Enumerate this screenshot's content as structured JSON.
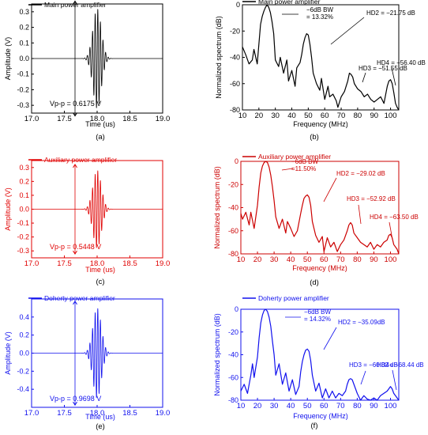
{
  "colors": {
    "a": "#000000",
    "b": "#000000",
    "c": "#e00000",
    "d": "#cc0000",
    "e": "#1010ee",
    "f": "#1010ee"
  },
  "chart_data": [
    {
      "id": "a",
      "type": "line",
      "panel_label": "(a)",
      "legend": "Main power amplifier",
      "xlabel": "Time (us)",
      "ylabel": "Amplitude (V)",
      "xlim": [
        17.0,
        19.0
      ],
      "ylim": [
        -0.35,
        0.35
      ],
      "xticks": [
        "17.0",
        "17.5",
        "18.0",
        "18.5",
        "19.0"
      ],
      "yticks": [
        "0.3",
        "0.2",
        "0.1",
        "0.0",
        "-0.1",
        "-0.2",
        "-0.3"
      ],
      "annotations": [
        {
          "text": "Vp-p = 0.6175 V"
        }
      ],
      "burst": {
        "center": 18.0,
        "amplitude": 0.32,
        "width": 0.09,
        "freq_mhz": 25
      }
    },
    {
      "id": "b",
      "type": "line",
      "panel_label": "(b)",
      "legend": "Main power amplifier",
      "xlabel": "Frequency (MHz)",
      "ylabel": "Normalized spectrum (dB)",
      "xlim": [
        10,
        105
      ],
      "ylim": [
        -80,
        0
      ],
      "xticks": [
        "10",
        "20",
        "30",
        "40",
        "50",
        "60",
        "70",
        "80",
        "90",
        "100"
      ],
      "yticks": [
        "0",
        "-20",
        "-40",
        "-60",
        "-80"
      ],
      "annotations": [
        {
          "text": "−6dB BW\n= 13.32%"
        },
        {
          "text": "HD2 = −21.75 dB"
        },
        {
          "text": "HD3 = −51.55 dB"
        },
        {
          "text": "HD4 = −56.40 dB"
        }
      ],
      "x": [
        10,
        12,
        14,
        16,
        17,
        19,
        20,
        21,
        22,
        23,
        24,
        25,
        26,
        27,
        28,
        29,
        30,
        32,
        33,
        35,
        37,
        38,
        40,
        42,
        43,
        45,
        46,
        47,
        48,
        49,
        50,
        51,
        52,
        53,
        55,
        57,
        58,
        60,
        62,
        63,
        65,
        67,
        68,
        70,
        72,
        74,
        75,
        76,
        77,
        78,
        80,
        82,
        84,
        86,
        88,
        90,
        92,
        94,
        96,
        98,
        99,
        100,
        101,
        102,
        103,
        104,
        105
      ],
      "y": [
        -32,
        -38,
        -45,
        -42,
        -34,
        -45,
        -30,
        -15,
        -9,
        -5,
        -2,
        0,
        -2,
        -6,
        -13,
        -22,
        -42,
        -47,
        -40,
        -52,
        -42,
        -58,
        -50,
        -62,
        -48,
        -44,
        -38,
        -30,
        -25,
        -22,
        -23,
        -30,
        -40,
        -52,
        -60,
        -65,
        -56,
        -72,
        -62,
        -70,
        -68,
        -73,
        -78,
        -70,
        -66,
        -58,
        -52,
        -53,
        -55,
        -60,
        -64,
        -66,
        -70,
        -68,
        -72,
        -74,
        -72,
        -70,
        -75,
        -62,
        -58,
        -57,
        -60,
        -67,
        -75,
        -78,
        -80
      ]
    },
    {
      "id": "c",
      "type": "line",
      "panel_label": "(c)",
      "legend": "Auxiliary power amplifier",
      "xlabel": "Time (us)",
      "ylabel": "Amplitude (V)",
      "xlim": [
        17.0,
        19.0
      ],
      "ylim": [
        -0.35,
        0.35
      ],
      "xticks": [
        "17.0",
        "17.5",
        "18.0",
        "18.5",
        "19.0"
      ],
      "yticks": [
        "0.3",
        "0.2",
        "0.1",
        "0.0",
        "-0.1",
        "-0.2",
        "-0.3"
      ],
      "annotations": [
        {
          "text": "Vp-p = 0.5448 V"
        }
      ],
      "burst": {
        "center": 18.0,
        "amplitude": 0.28,
        "width": 0.09,
        "freq_mhz": 25
      }
    },
    {
      "id": "d",
      "type": "line",
      "panel_label": "(d)",
      "legend": "Auxiliary power amplifier",
      "xlabel": "Frequency (MHz)",
      "ylabel": "Normalized spectrum (dB)",
      "xlim": [
        10,
        105
      ],
      "ylim": [
        -80,
        0
      ],
      "xticks": [
        "10",
        "20",
        "30",
        "40",
        "50",
        "60",
        "70",
        "80",
        "90",
        "100"
      ],
      "yticks": [
        "0",
        "-20",
        "-40",
        "-60",
        "-80"
      ],
      "annotations": [
        {
          "text": "−6dB BW\n=11.50%"
        },
        {
          "text": "HD2 = −29.02 dB"
        },
        {
          "text": "HD3 = −52.92 dB"
        },
        {
          "text": "HD4 = −63.50 dB"
        }
      ],
      "x": [
        10,
        11,
        13,
        15,
        16,
        18,
        20,
        21,
        22,
        23,
        24,
        25,
        26,
        27,
        28,
        29,
        30,
        31,
        33,
        35,
        37,
        38,
        40,
        42,
        44,
        46,
        47,
        48,
        49,
        50,
        51,
        52,
        53,
        55,
        57,
        59,
        60,
        62,
        64,
        66,
        68,
        70,
        72,
        74,
        75,
        76,
        77,
        78,
        80,
        82,
        84,
        86,
        88,
        90,
        92,
        94,
        96,
        98,
        99,
        100,
        101,
        102,
        104,
        105
      ],
      "y": [
        -45,
        -50,
        -44,
        -55,
        -44,
        -58,
        -38,
        -22,
        -10,
        -4,
        -1,
        0,
        -1,
        -5,
        -12,
        -22,
        -34,
        -48,
        -58,
        -50,
        -62,
        -52,
        -58,
        -65,
        -60,
        -45,
        -38,
        -32,
        -30,
        -29,
        -31,
        -38,
        -52,
        -64,
        -70,
        -65,
        -78,
        -66,
        -74,
        -70,
        -78,
        -72,
        -68,
        -60,
        -55,
        -53,
        -55,
        -62,
        -66,
        -70,
        -72,
        -74,
        -70,
        -76,
        -72,
        -74,
        -70,
        -68,
        -64,
        -63,
        -66,
        -72,
        -76,
        -80
      ]
    },
    {
      "id": "e",
      "type": "line",
      "panel_label": "(e)",
      "legend": "Doherty power amplifier",
      "xlabel": "Time (us)",
      "ylabel": "Amplitude (V)",
      "xlim": [
        17.0,
        19.0
      ],
      "ylim": [
        -0.6,
        0.6
      ],
      "xticks": [
        "17.0",
        "17.5",
        "18.0",
        "18.5",
        "19.0"
      ],
      "yticks": [
        "0.4",
        "0.2",
        "0.0",
        "-0.2",
        "-0.4"
      ],
      "annotations": [
        {
          "text": "Vp-p = 0.9698 V"
        }
      ],
      "burst": {
        "center": 18.0,
        "amplitude": 0.5,
        "width": 0.09,
        "freq_mhz": 25
      }
    },
    {
      "id": "f",
      "type": "line",
      "panel_label": "(f)",
      "legend": "Doherty power amplifier",
      "xlabel": "Frequency (MHz)",
      "ylabel": "Normalized spectrum (dB)",
      "xlim": [
        10,
        105
      ],
      "ylim": [
        -80,
        0
      ],
      "xticks": [
        "10",
        "20",
        "30",
        "40",
        "50",
        "60",
        "70",
        "80",
        "90",
        "100"
      ],
      "yticks": [
        "0",
        "-20",
        "-40",
        "-60",
        "-80"
      ],
      "annotations": [
        {
          "text": "−6dB BW\n= 14.32%"
        },
        {
          "text": "HD2 = −35.09dB"
        },
        {
          "text": "HD3 = −60.82 dB"
        },
        {
          "text": "HD4= −68.44 dB"
        }
      ],
      "x": [
        10,
        12,
        14,
        16,
        17,
        18,
        20,
        21,
        22,
        23,
        24,
        25,
        26,
        27,
        28,
        29,
        30,
        31,
        33,
        35,
        37,
        39,
        41,
        43,
        45,
        46,
        47,
        48,
        49,
        50,
        51,
        52,
        53,
        55,
        57,
        59,
        61,
        63,
        65,
        67,
        69,
        71,
        73,
        74,
        75,
        76,
        77,
        78,
        80,
        82,
        84,
        86,
        88,
        90,
        92,
        94,
        96,
        98,
        99,
        100,
        101,
        102,
        104,
        105
      ],
      "y": [
        -72,
        -66,
        -74,
        -58,
        -48,
        -60,
        -42,
        -25,
        -12,
        -5,
        -1,
        0,
        -2,
        -7,
        -15,
        -28,
        -40,
        -58,
        -48,
        -66,
        -56,
        -72,
        -62,
        -75,
        -68,
        -55,
        -46,
        -40,
        -36,
        -35,
        -37,
        -45,
        -58,
        -72,
        -65,
        -78,
        -70,
        -78,
        -72,
        -78,
        -74,
        -76,
        -72,
        -66,
        -62,
        -61,
        -62,
        -66,
        -74,
        -80,
        -76,
        -79,
        -80,
        -78,
        -80,
        -76,
        -74,
        -72,
        -70,
        -68,
        -70,
        -74,
        -78,
        -80
      ]
    }
  ]
}
